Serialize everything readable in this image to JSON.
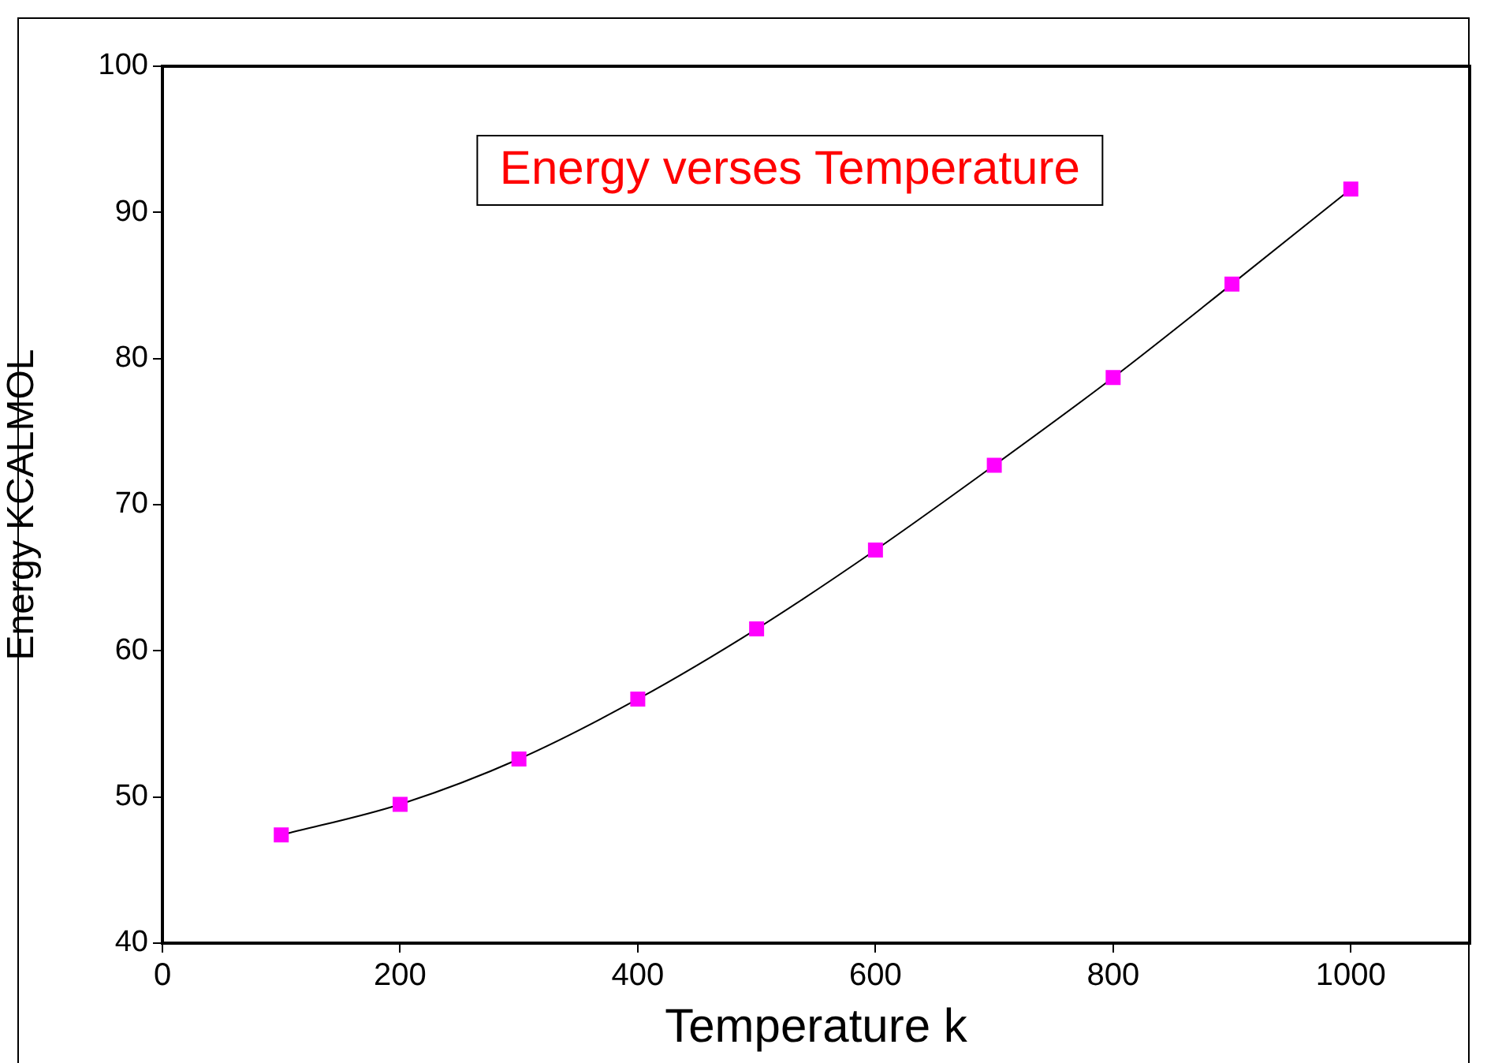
{
  "chart_data": {
    "type": "line",
    "title": "Energy verses Temperature",
    "xlabel": "Temperature k",
    "ylabel": "Energy KCALMOL",
    "x": [
      100,
      200,
      300,
      400,
      500,
      600,
      700,
      800,
      900,
      1000
    ],
    "series": [
      {
        "color": "#ff00ff",
        "values": [
          47.4,
          49.5,
          52.6,
          56.7,
          61.5,
          66.9,
          72.7,
          78.7,
          85.1,
          91.6
        ]
      }
    ],
    "xlim": [
      0,
      1100
    ],
    "xticks": [
      0,
      200,
      400,
      600,
      800,
      1000
    ],
    "ylim": [
      40,
      100
    ],
    "yticks": [
      40,
      50,
      60,
      70,
      80,
      90,
      100
    ],
    "grid": false,
    "legend": false,
    "marker": "square",
    "line_style": "solid"
  }
}
